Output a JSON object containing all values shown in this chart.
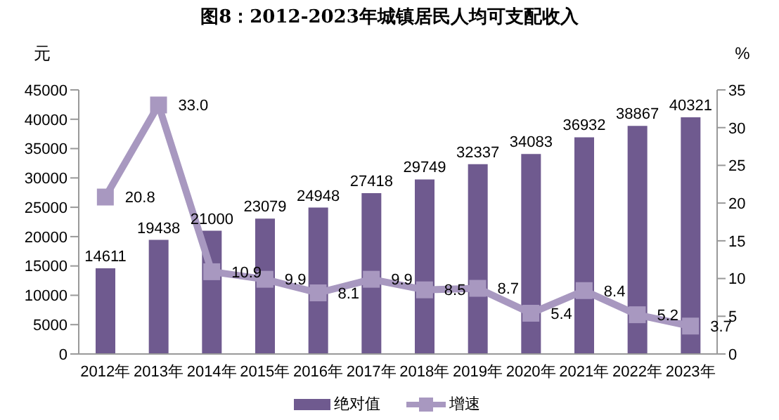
{
  "chart_data": {
    "type": "bar",
    "title": "图8：2012-2023年城镇居民人均可支配收入",
    "ylabel": "元",
    "y2label": "%",
    "categories": [
      "2012年",
      "2013年",
      "2014年",
      "2015年",
      "2016年",
      "2017年",
      "2018年",
      "2019年",
      "2020年",
      "2021年",
      "2022年",
      "2023年"
    ],
    "series": [
      {
        "name": "绝对值",
        "color": "#6f5a8f",
        "values": [
          14611,
          19438,
          21000,
          23079,
          24948,
          27418,
          29749,
          32337,
          34083,
          36932,
          38867,
          40321
        ]
      },
      {
        "name": "增速",
        "type": "line",
        "axis": "y2",
        "color": "#a898c0",
        "marker": "square",
        "values": [
          20.8,
          33.0,
          10.9,
          9.9,
          8.1,
          9.9,
          8.5,
          8.7,
          5.4,
          8.4,
          5.2,
          3.7
        ],
        "value_labels": [
          "20.8",
          "33.0",
          "10.9",
          "9.9",
          "8.1",
          "9.9",
          "8.5",
          "8.7",
          "5.4",
          "8.4",
          "5.2",
          "3.7"
        ]
      }
    ],
    "data_labels": true,
    "ylim": [
      0,
      45000
    ],
    "yticks": [
      0,
      5000,
      10000,
      15000,
      20000,
      25000,
      30000,
      35000,
      40000,
      45000
    ],
    "y2lim": [
      0,
      35
    ],
    "y2ticks": [
      0,
      5,
      10,
      15,
      20,
      25,
      30,
      35
    ],
    "grid": false,
    "legend": "bottom"
  }
}
